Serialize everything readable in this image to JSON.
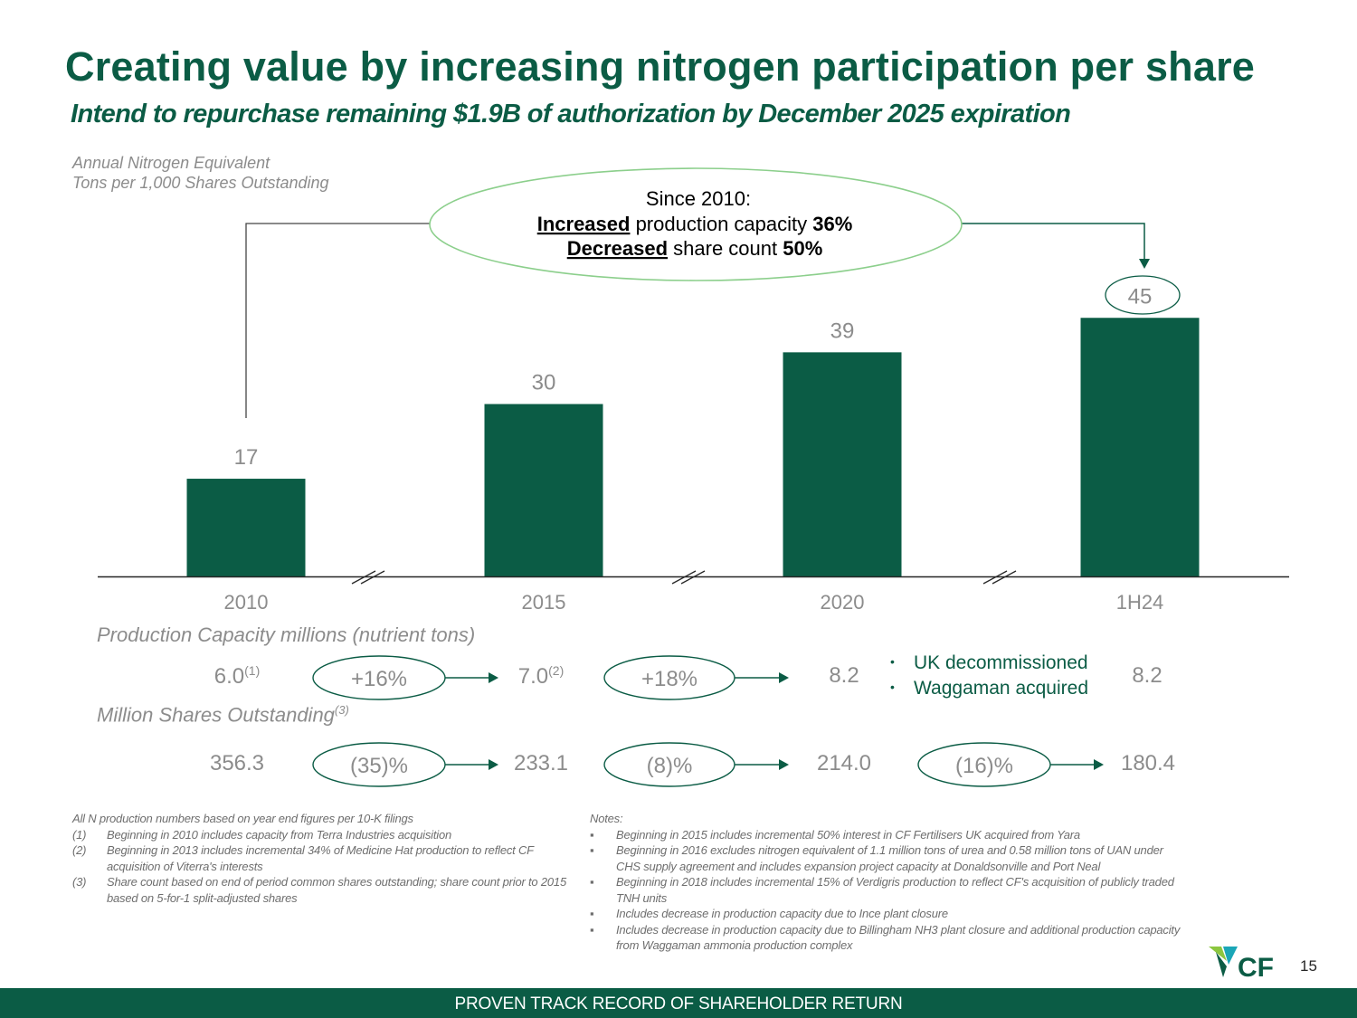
{
  "title": "Creating value by increasing nitrogen participation per share",
  "subtitle": "Intend to repurchase remaining $1.9B of authorization by December 2025 expiration",
  "y_axis_label": [
    "Annual Nitrogen Equivalent",
    "Tons per 1,000 Shares Outstanding"
  ],
  "callout": {
    "line1": "Since 2010:",
    "line2_link": "Increased",
    "line2_text": " production capacity ",
    "line2_value": "36%",
    "line3_link": "Decreased",
    "line3_text": " share count ",
    "line3_value": "50%"
  },
  "chart_data": {
    "type": "bar",
    "categories": [
      "2010",
      "2015",
      "2020",
      "1H24"
    ],
    "values": [
      17,
      30,
      39,
      45
    ],
    "value_labels": [
      "17",
      "30",
      "39",
      "45"
    ],
    "ylim": [
      0,
      50
    ],
    "title": "",
    "xlabel": "",
    "ylabel": "Annual Nitrogen Equivalent Tons per 1,000 Shares Outstanding",
    "axis_breaks": true,
    "bar_color": "#0b5c45"
  },
  "production": {
    "label": "Production Capacity millions (nutrient tons)",
    "values": [
      {
        "value": "6.0",
        "note": "(1)"
      },
      {
        "value": "7.0",
        "note": "(2)"
      },
      {
        "value": "8.2",
        "note": ""
      },
      {
        "value": "8.2",
        "note": ""
      }
    ],
    "changes": [
      "+16%",
      "+18%"
    ],
    "bullets": [
      "UK decommissioned",
      "Waggaman acquired"
    ]
  },
  "shares": {
    "label": "Million Shares Outstanding",
    "label_note": "(3)",
    "values": [
      "356.3",
      "233.1",
      "214.0",
      "180.4"
    ],
    "changes": [
      "(35)%",
      "(8)%",
      "(16)%"
    ]
  },
  "footnotes_left": {
    "intro": "All N production numbers based on year end figures per 10-K filings",
    "items": [
      {
        "key": "(1)",
        "text": "Beginning in 2010 includes capacity from Terra Industries acquisition"
      },
      {
        "key": "(2)",
        "text": "Beginning in 2013 includes incremental 34% of Medicine Hat production to reflect CF acquisition of Viterra's interests"
      },
      {
        "key": "(3)",
        "text": "Share count based on end of period common shares outstanding; share count prior to 2015 based on 5-for-1 split-adjusted shares"
      }
    ]
  },
  "footnotes_right": {
    "heading": "Notes:",
    "items": [
      "Beginning in 2015 includes incremental 50% interest in CF Fertilisers UK acquired from Yara",
      "Beginning in 2016 excludes nitrogen equivalent of 1.1 million tons of urea and 0.58 million tons of UAN under CHS supply agreement and includes expansion project capacity at Donaldsonville and Port Neal",
      "Beginning in 2018 includes incremental 15% of Verdigris production to reflect CF's acquisition of publicly traded TNH units",
      "Includes decrease in production capacity due to Ince plant closure",
      "Includes decrease in production capacity due to Billingham NH3 plant closure and additional production capacity from Waggaman ammonia production complex"
    ]
  },
  "footer": "PROVEN TRACK RECORD OF SHAREHOLDER RETURN",
  "page_number": "15",
  "logo_text": "CF",
  "colors": {
    "brand": "#0b5c45",
    "text_gray": "#8c8c8c"
  }
}
